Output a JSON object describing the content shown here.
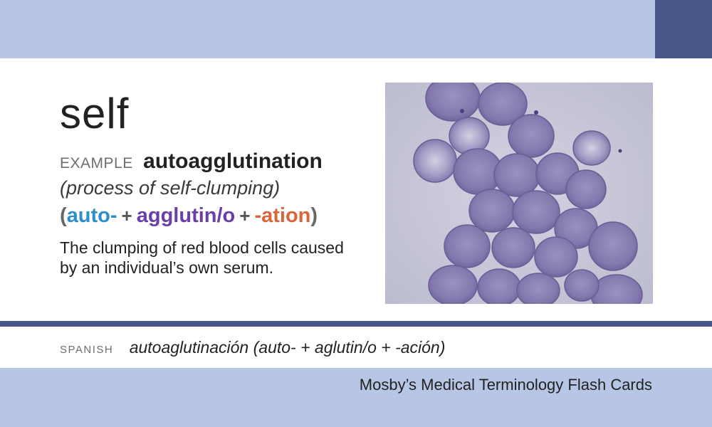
{
  "card": {
    "term": "self",
    "example_label": "EXAMPLE",
    "example_word": "autoagglutination",
    "gloss": "(process of self-clumping)",
    "breakdown": {
      "open_paren": "(",
      "parts": [
        {
          "text": "auto-",
          "color": "#2b8fcc"
        },
        {
          "text": "agglutin/o",
          "color": "#6a40a8"
        },
        {
          "text": "-ation",
          "color": "#d9663a"
        }
      ],
      "plus": "+",
      "close_paren": ")"
    },
    "definition": "The clumping of red blood cells caused by an individual’s own serum.",
    "image": {
      "subject": "micrograph-agglutinated-red-blood-cells"
    }
  },
  "spanish": {
    "label": "SPANISH",
    "text": "autoaglutinación (auto- + aglutin/o + -ación)"
  },
  "footer": {
    "title": "Mosby’s Medical Terminology Flash Cards"
  },
  "colors": {
    "band": "#b7c6e5",
    "accent_dark": "#475689"
  }
}
